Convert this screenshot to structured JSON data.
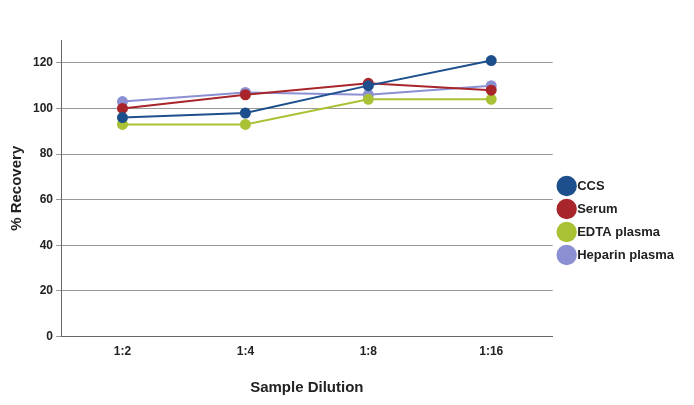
{
  "chart_data": {
    "type": "line",
    "x_label": "Sample Dilution",
    "y_label": "% Recovery",
    "categories": [
      "1:2",
      "1:4",
      "1:8",
      "1:16"
    ],
    "series": [
      {
        "name": "CCS",
        "color": "#1d4f8c",
        "marker": "circle",
        "values": [
          96,
          98,
          110,
          121
        ]
      },
      {
        "name": "Serum",
        "color": "#a8262b",
        "marker": "circle",
        "values": [
          100,
          106,
          111,
          108
        ]
      },
      {
        "name": "EDTA plasma",
        "color": "#a9c235",
        "marker": "circle",
        "values": [
          93,
          93,
          104,
          104
        ]
      },
      {
        "name": "Heparin plasma",
        "color": "#8b90d2",
        "marker": "circle",
        "values": [
          103,
          107,
          106,
          110
        ]
      }
    ],
    "ylim": [
      0,
      130
    ],
    "yticks": [
      0,
      20,
      40,
      60,
      80,
      100,
      120
    ],
    "grid": true,
    "legend": "right"
  }
}
